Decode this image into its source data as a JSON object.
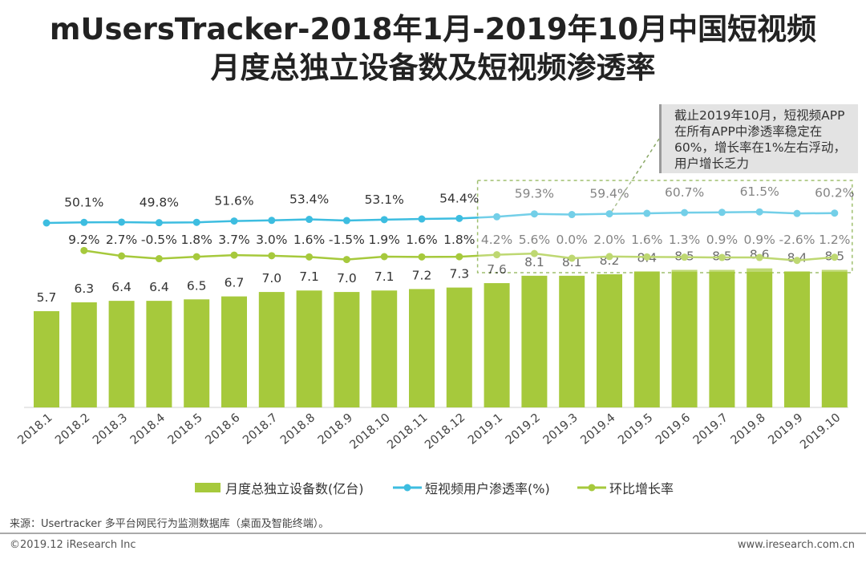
{
  "title": {
    "line1": "mUsersTracker-2018年1月-2019年10月中国短视频",
    "line2": "月度总独立设备数及短视频渗透率"
  },
  "annotation": "截止2019年10月，短视频APP在所有APP中渗透率稳定在60%，增长率在1%左右浮动，用户增长乏力",
  "legend": {
    "bar": "月度总独立设备数(亿台)",
    "penetration": "短视频用户渗透率(%)",
    "growth": "环比增长率"
  },
  "footer": {
    "source": "来源：Usertracker 多平台网民行为监测数据库（桌面及智能终端）。",
    "copyright": "©2019.12 iResearch Inc",
    "website": "www.iresearch.com.cn"
  },
  "colors": {
    "bar": "#a6c93c",
    "penetration": "#3dbde0",
    "growth": "#a6c93c",
    "highlight_border": "#9fbf6f"
  },
  "chart_data": {
    "type": "bar+line",
    "categories": [
      "2018.1",
      "2018.2",
      "2018.3",
      "2018.4",
      "2018.5",
      "2018.6",
      "2018.7",
      "2018.8",
      "2018.9",
      "2018.10",
      "2018.11",
      "2018.12",
      "2019.1",
      "2019.2",
      "2019.3",
      "2019.4",
      "2019.5",
      "2019.6",
      "2019.7",
      "2019.8",
      "2019.9",
      "2019.10"
    ],
    "series": [
      {
        "name": "月度总独立设备数(亿台)",
        "type": "bar",
        "values": [
          5.7,
          6.3,
          6.4,
          6.4,
          6.5,
          6.7,
          7.0,
          7.1,
          7.0,
          7.1,
          7.2,
          7.3,
          7.6,
          8.1,
          8.1,
          8.2,
          8.4,
          8.5,
          8.5,
          8.6,
          8.4,
          8.5
        ],
        "labels": [
          "5.7",
          "6.3",
          "6.4",
          "6.4",
          "6.5",
          "6.7",
          "7.0",
          "7.1",
          "7.0",
          "7.1",
          "7.2",
          "7.3",
          "7.6",
          "8.1",
          "8.1",
          "8.2",
          "8.4",
          "8.5",
          "8.5",
          "8.6",
          "8.4",
          "8.5"
        ]
      },
      {
        "name": "短视频用户渗透率(%)",
        "type": "line",
        "values": [
          49.5,
          50.1,
          50.4,
          49.8,
          50.2,
          51.6,
          52.3,
          53.4,
          52.1,
          53.1,
          53.8,
          54.4,
          56.2,
          59.3,
          58.6,
          59.4,
          59.9,
          60.7,
          61.0,
          61.5,
          59.8,
          60.2
        ],
        "labels": [
          "",
          "50.1%",
          "",
          "49.8%",
          "",
          "51.6%",
          "",
          "53.4%",
          "",
          "53.1%",
          "",
          "54.4%",
          "",
          "59.3%",
          "",
          "59.4%",
          "",
          "60.7%",
          "",
          "61.5%",
          "",
          "60.2%"
        ]
      },
      {
        "name": "环比增长率",
        "type": "line",
        "values": [
          null,
          9.2,
          2.7,
          -0.5,
          1.8,
          3.7,
          3.0,
          1.6,
          -1.5,
          1.9,
          1.6,
          1.8,
          4.2,
          5.6,
          0.0,
          2.0,
          1.6,
          1.3,
          0.9,
          0.9,
          -2.6,
          1.2
        ],
        "labels": [
          "",
          "9.2%",
          "2.7%",
          "-0.5%",
          "1.8%",
          "3.7%",
          "3.0%",
          "1.6%",
          "-1.5%",
          "1.9%",
          "1.6%",
          "1.8%",
          "4.2%",
          "5.6%",
          "0.0%",
          "2.0%",
          "1.6%",
          "1.3%",
          "0.9%",
          "0.9%",
          "-2.6%",
          "1.2%"
        ]
      }
    ],
    "highlight_range": [
      "2019.1",
      "2019.10"
    ]
  }
}
